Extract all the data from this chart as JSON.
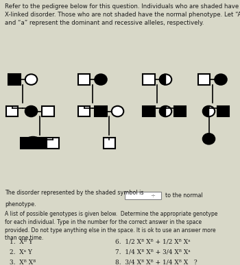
{
  "bg_header": "#c8c8a9",
  "bg_main": "#d8d8c8",
  "header_text": "Refer to the pedigree below for this question. Individuals who are shaded have an\nX-linked disorder. Those who are not shaded have the normal phenotype. Let “A”\nand “a” represent the dominant and recessive alleles, respectively.",
  "bottom_text1": "The disorder represented by the shaded symbol is",
  "bottom_text2": "to the normal",
  "bottom_text3": "phenotype.",
  "instructions": "A list of possible genotypes is given below.  Determine the appropriate genotype\nfor each individual. Type in the number for the correct answer in the space\nprovided. Do not type anything else in the space. It is ok to use an answer more\nthan one time.",
  "genotypes_left": [
    "1.  Xᴮ Y",
    "2.  Xᵃ Y",
    "3.  Xᴮ Xᴮ"
  ],
  "genotypes_right": [
    "6.  1/2 Xᴮ Xᴮ + 1/2 Xᴮ Xᵃ",
    "7.  1/4 Xᴮ Xᴮ + 3/4 Xᴮ Xᵃ",
    "8.  3/4 Xᴮ Xᴮ + 1/4 Xᴮ X   ?"
  ],
  "text_color": "#1a1a1a",
  "pedigree_bg": "#e8e8d8"
}
